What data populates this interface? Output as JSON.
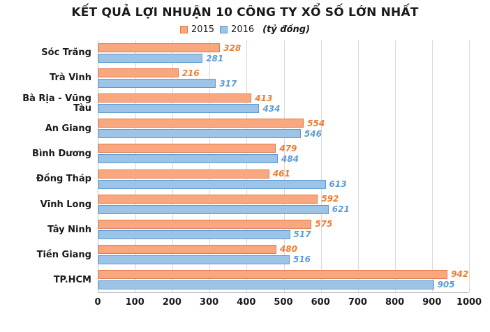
{
  "title": "KẾT QUẢ LỢI NHUẬN 10 CÔNG TY XỔ SỐ LỚN NHẤT",
  "legend": {
    "series": [
      "2015",
      "2016"
    ],
    "unit_note": "(tỷ đồng)"
  },
  "colors": {
    "series_2015_fill": "#F8A77E",
    "series_2015_stroke": "#E2794C",
    "series_2015_label": "#ED7D31",
    "series_2016_fill": "#9DC3E6",
    "series_2016_stroke": "#5B9BD5",
    "series_2016_label": "#5B9BD5",
    "gridline": "#D9D9D9",
    "axis_line": "#BFBFBF",
    "text": "#1A1A1A"
  },
  "chart_data": {
    "type": "bar",
    "orientation": "horizontal",
    "title": "KẾT QUẢ LỢI NHUẬN 10 CÔNG TY XỔ SỐ LỚN NHẤT",
    "unit": "tỷ đồng",
    "categories": [
      "Sóc Trăng",
      "Trà Vinh",
      "Bà Rịa - Vũng Tàu",
      "An Giang",
      "Bình Dương",
      "Đồng Tháp",
      "Vĩnh Long",
      "Tây Ninh",
      "Tiền Giang",
      "TP.HCM"
    ],
    "series": [
      {
        "name": "2015",
        "values": [
          328,
          216,
          413,
          554,
          479,
          461,
          592,
          575,
          480,
          942
        ]
      },
      {
        "name": "2016",
        "values": [
          281,
          317,
          434,
          546,
          484,
          613,
          621,
          517,
          516,
          905
        ]
      }
    ],
    "xlim": [
      0,
      1000
    ],
    "xticks": [
      0,
      100,
      200,
      300,
      400,
      500,
      600,
      700,
      800,
      900,
      1000
    ],
    "grid": true,
    "legend_position": "top",
    "data_labels": true
  }
}
